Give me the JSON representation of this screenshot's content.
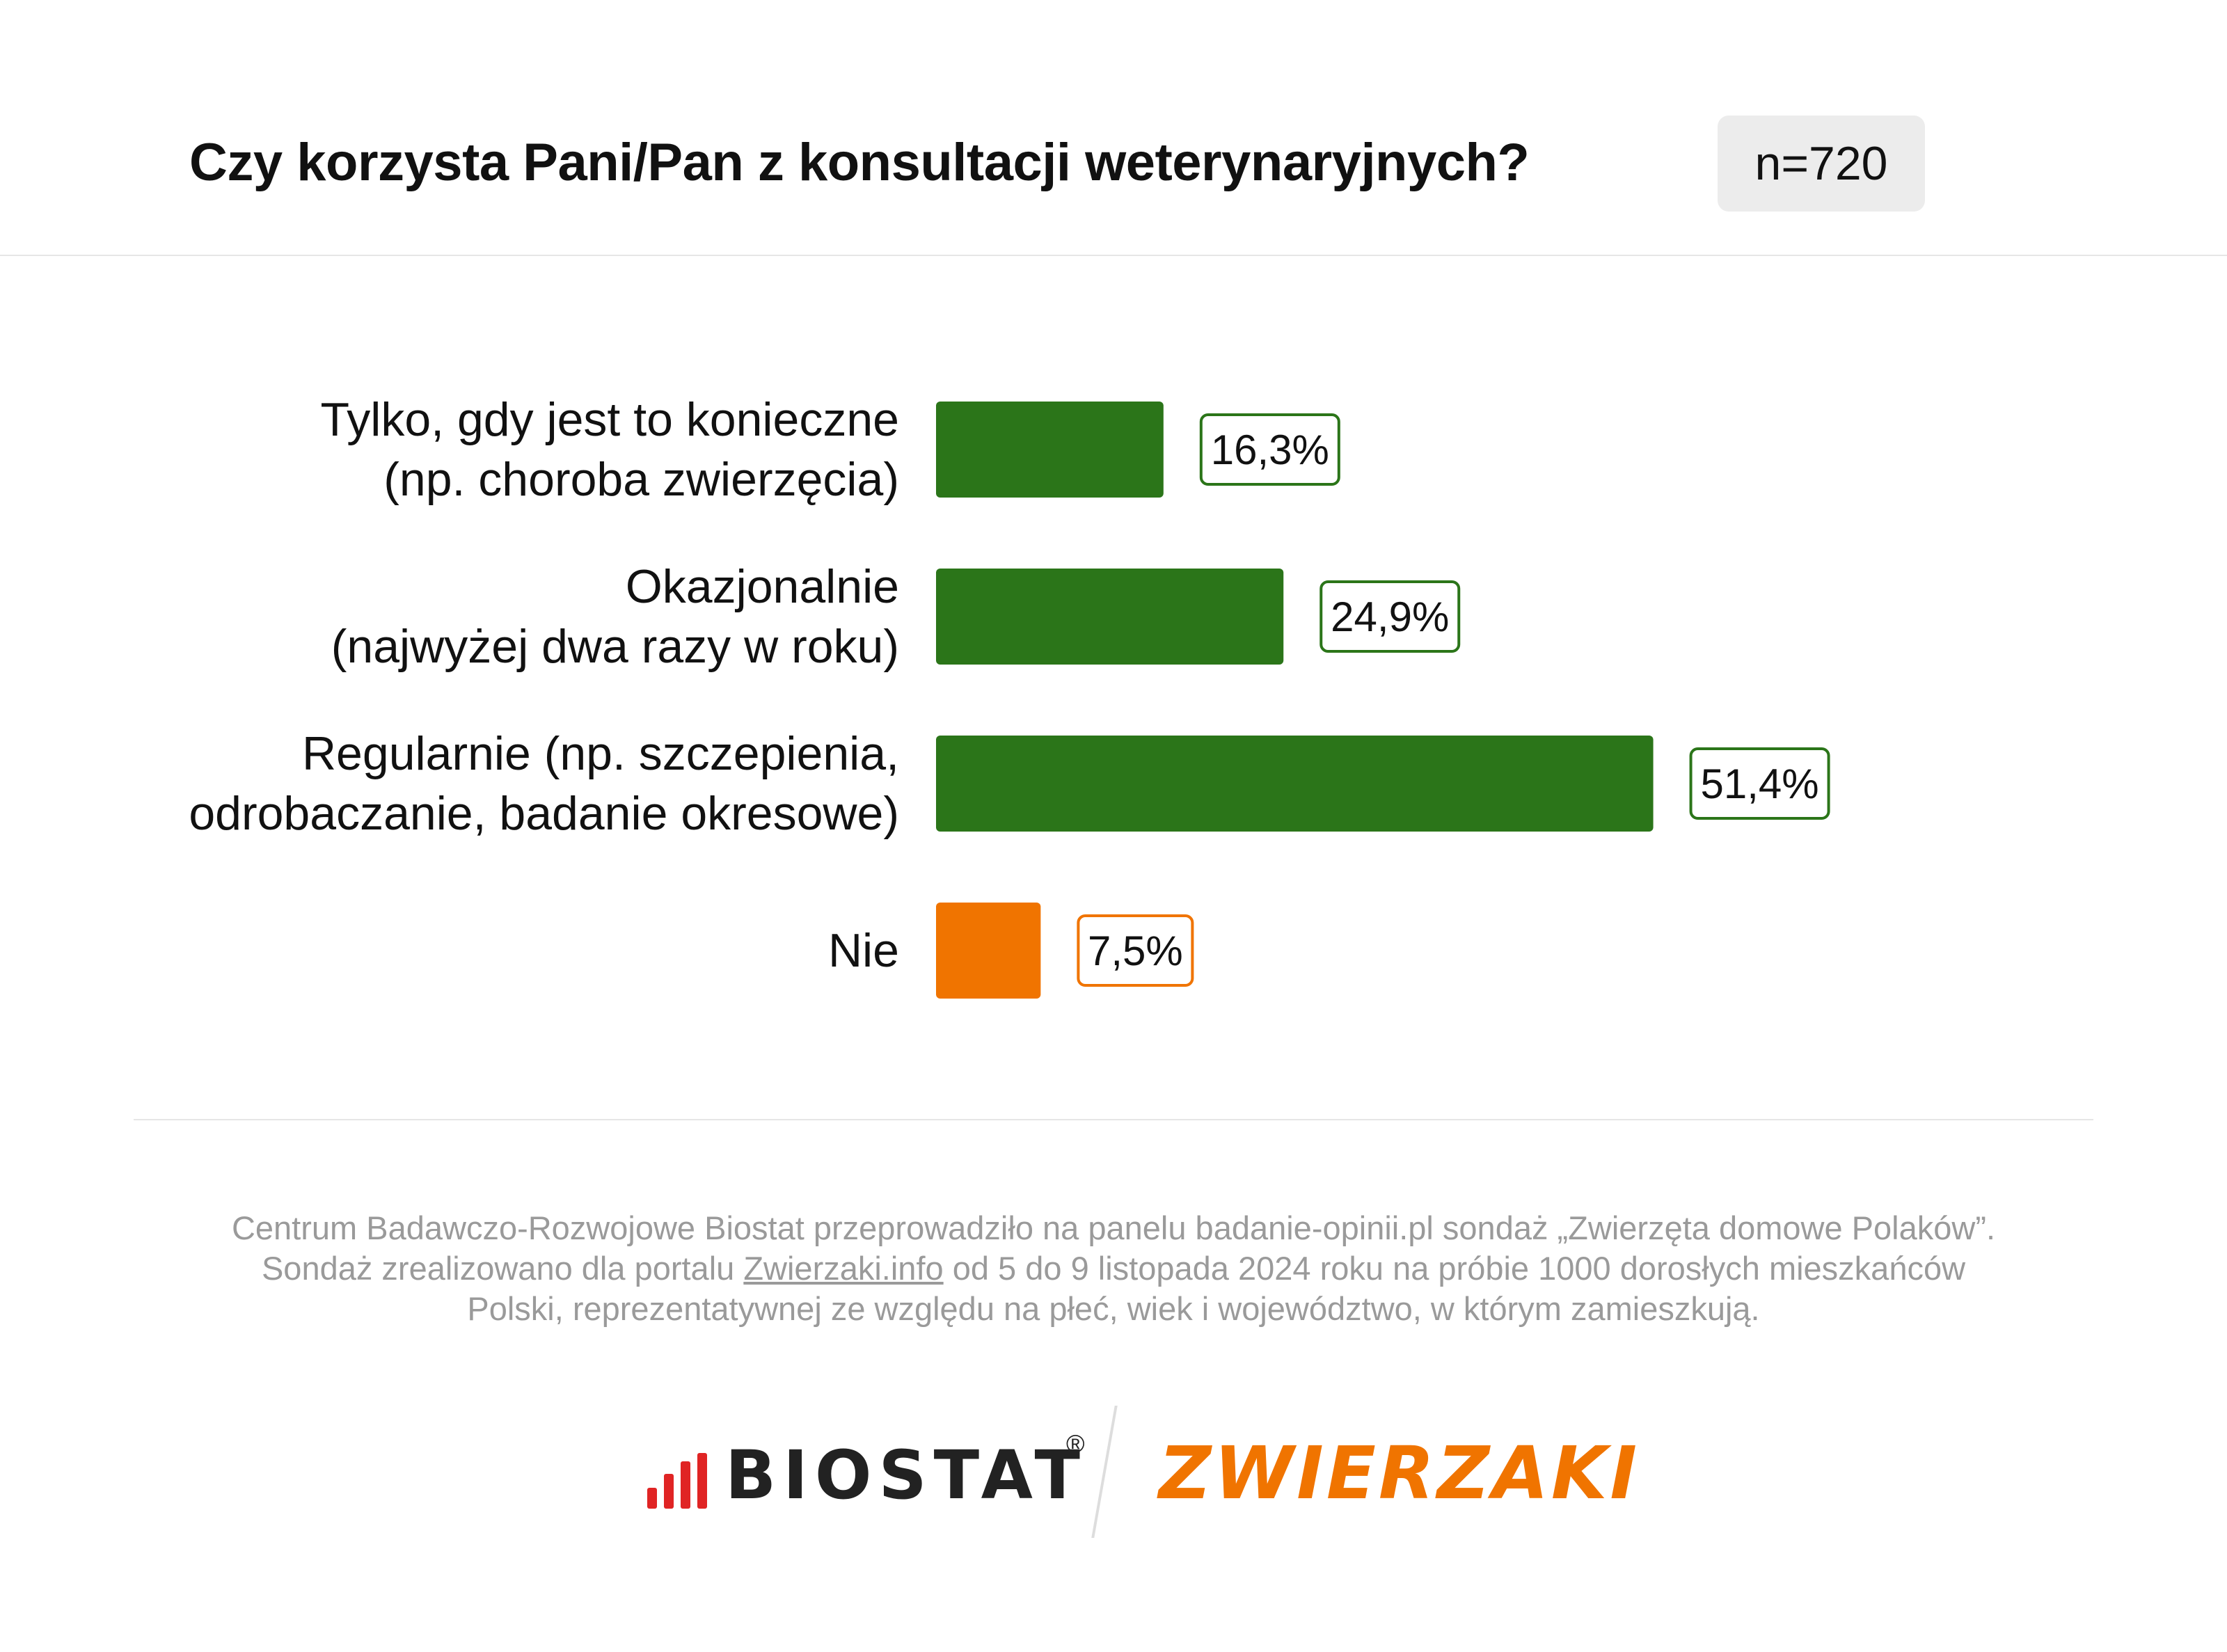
{
  "header": {
    "title": "Czy korzysta Pani/Pan z konsultacji weterynaryjnych?",
    "sample": "n=720"
  },
  "chart_data": {
    "type": "bar",
    "orientation": "horizontal",
    "categories": [
      "Tylko, gdy jest to konieczne\n(np. choroba zwierzęcia)",
      "Okazjonalnie\n(najwyżej dwa razy w roku)",
      "Regularnie (np. szczepienia,\nodrobaczanie, badanie okresowe)",
      "Nie"
    ],
    "values": [
      16.3,
      24.9,
      51.4,
      7.5
    ],
    "value_labels": [
      "16,3%",
      "24,9%",
      "51,4%",
      "7,5%"
    ],
    "colors": [
      "#2b7519",
      "#2b7519",
      "#2b7519",
      "#f07400"
    ],
    "title": "Czy korzysta Pani/Pan z konsultacji weterynaryjnych?",
    "xlabel": "",
    "ylabel": "",
    "grid": false,
    "legend": "none"
  },
  "footnote": {
    "line1": "Centrum Badawczo-Rozwojowe Biostat przeprowadziło na panelu badanie-opinii.pl sondaż „Zwierzęta domowe Polaków”.",
    "line2_pre": "Sondaż zrealizowano dla portalu ",
    "line2_link": "Zwierzaki.info",
    "line2_post": " od 5 do 9 listopada 2024 roku na próbie 1000 dorosłych mieszkańców",
    "line3": "Polski, reprezentatywnej ze względu na płeć, wiek i województwo, w którym zamieszkują."
  },
  "logos": {
    "biostat": "BIOSTAT",
    "registered": "®",
    "zwierzaki": "ZWIERZAKI"
  }
}
